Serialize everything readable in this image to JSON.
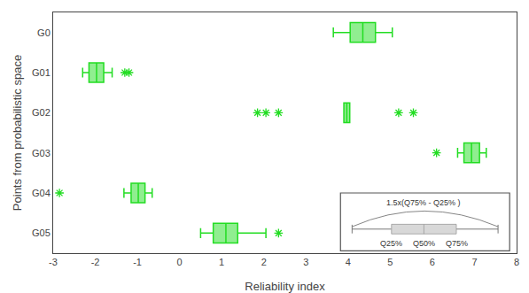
{
  "chart_data": {
    "type": "box",
    "orientation": "horizontal",
    "xlabel": "Reliability index",
    "ylabel": "Points from probabilistic space",
    "categories": [
      "G05",
      "G04",
      "G03",
      "G02",
      "G01",
      "G0"
    ],
    "boxes": [
      {
        "category": "G0",
        "q1": 4.05,
        "median": 4.35,
        "q3": 4.65,
        "whisker_lo": 3.65,
        "whisker_hi": 5.05,
        "outliers": []
      },
      {
        "category": "G01",
        "q1": -2.15,
        "median": -1.97,
        "q3": -1.8,
        "whisker_lo": -2.3,
        "whisker_hi": -1.6,
        "outliers": [
          -1.3,
          -1.2
        ]
      },
      {
        "category": "G02",
        "q1": 3.9,
        "median": 3.97,
        "q3": 4.04,
        "whisker_lo": 3.9,
        "whisker_hi": 4.04,
        "outliers": [
          1.85,
          2.05,
          2.35,
          5.2,
          5.55
        ]
      },
      {
        "category": "G03",
        "q1": 6.75,
        "median": 6.93,
        "q3": 7.12,
        "whisker_lo": 6.6,
        "whisker_hi": 7.28,
        "outliers": [
          6.1
        ]
      },
      {
        "category": "G04",
        "q1": -1.15,
        "median": -0.98,
        "q3": -0.82,
        "whisker_lo": -1.32,
        "whisker_hi": -0.65,
        "outliers": [
          -2.85
        ]
      },
      {
        "category": "G05",
        "q1": 0.8,
        "median": 1.1,
        "q3": 1.38,
        "whisker_lo": 0.5,
        "whisker_hi": 2.05,
        "outliers": [
          2.35
        ]
      }
    ],
    "xlim": [
      -3,
      8
    ],
    "xticks": [
      -3,
      -2,
      -1,
      0,
      1,
      2,
      3,
      4,
      5,
      6,
      7,
      8
    ],
    "color": "#22dd22",
    "marker": "asterisk",
    "grid": false,
    "annotations": [
      "1.5x(Q75% - Q25% )",
      "Q25%",
      "Q50%",
      "Q75%"
    ]
  }
}
